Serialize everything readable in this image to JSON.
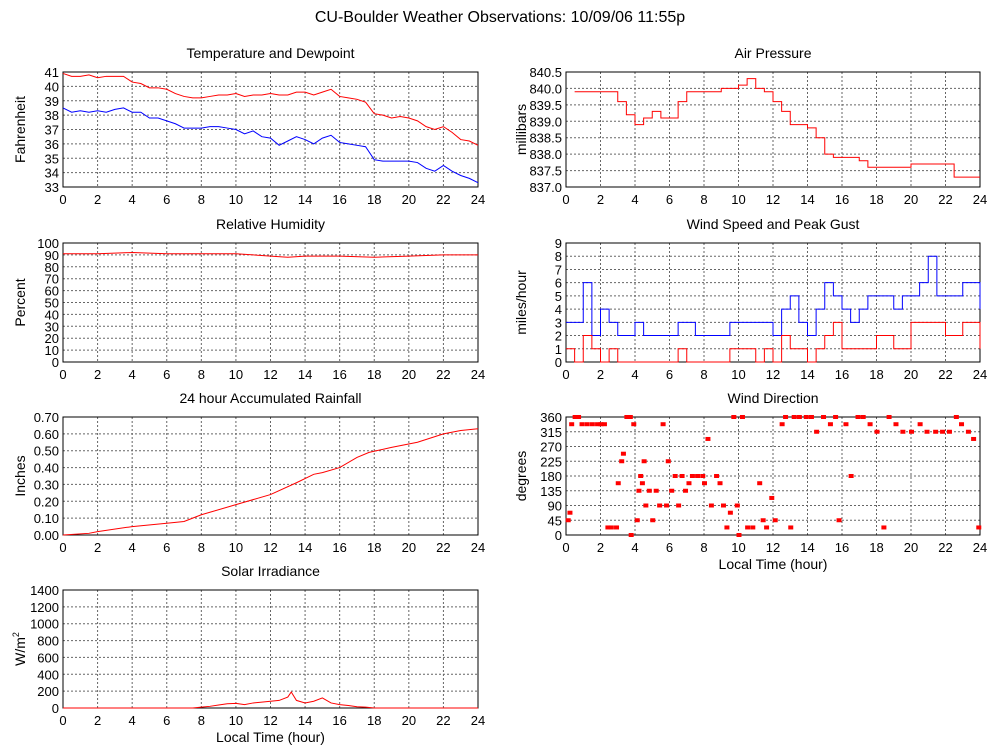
{
  "title": "CU-Boulder Weather Observations: 10/09/06 11:55p",
  "chart_data": [
    {
      "id": "temp",
      "type": "line",
      "title": "Temperature and Dewpoint",
      "ylabel": "Fahrenheit",
      "xlabel": "",
      "xlim": [
        0,
        24
      ],
      "ylim": [
        33,
        41
      ],
      "yticks": [
        "33",
        "34",
        "35",
        "36",
        "37",
        "38",
        "39",
        "40",
        "41"
      ],
      "xticks": [
        "0",
        "2",
        "4",
        "6",
        "8",
        "10",
        "12",
        "14",
        "16",
        "18",
        "20",
        "22",
        "24"
      ],
      "x": [
        0,
        0.5,
        1,
        1.5,
        2,
        2.5,
        3,
        3.5,
        4,
        4.5,
        5,
        5.5,
        6,
        6.5,
        7,
        7.5,
        8,
        8.5,
        9,
        9.5,
        10,
        10.5,
        11,
        11.5,
        12,
        12.5,
        13,
        13.5,
        14,
        14.5,
        15,
        15.5,
        16,
        16.5,
        17,
        17.5,
        18,
        18.5,
        19,
        19.5,
        20,
        20.5,
        21,
        21.5,
        22,
        22.5,
        23,
        23.5,
        24
      ],
      "series": [
        {
          "name": "Temperature",
          "color": "#ff0000",
          "values": [
            40.9,
            40.7,
            40.7,
            40.8,
            40.6,
            40.7,
            40.7,
            40.7,
            40.3,
            40.2,
            39.9,
            39.9,
            39.8,
            39.5,
            39.3,
            39.2,
            39.2,
            39.3,
            39.4,
            39.4,
            39.5,
            39.3,
            39.4,
            39.4,
            39.5,
            39.4,
            39.4,
            39.6,
            39.6,
            39.4,
            39.6,
            39.8,
            39.3,
            39.2,
            39.1,
            38.9,
            38.1,
            38.0,
            37.8,
            37.9,
            37.8,
            37.6,
            37.2,
            37.0,
            37.2,
            36.8,
            36.3,
            36.2,
            35.9
          ]
        },
        {
          "name": "Dewpoint",
          "color": "#0000ff",
          "values": [
            38.5,
            38.2,
            38.3,
            38.2,
            38.3,
            38.2,
            38.4,
            38.5,
            38.2,
            38.2,
            37.8,
            37.8,
            37.6,
            37.4,
            37.1,
            37.1,
            37.1,
            37.2,
            37.2,
            37.1,
            37.0,
            36.7,
            36.9,
            36.5,
            36.4,
            35.9,
            36.2,
            36.5,
            36.3,
            36.0,
            36.4,
            36.6,
            36.1,
            36.0,
            35.9,
            35.8,
            34.9,
            34.8,
            34.8,
            34.8,
            34.8,
            34.7,
            34.3,
            34.1,
            34.5,
            34.1,
            33.8,
            33.6,
            33.3
          ]
        }
      ]
    },
    {
      "id": "pres",
      "type": "line",
      "title": "Air Pressure",
      "ylabel": "millibars",
      "xlabel": "",
      "xlim": [
        0,
        24
      ],
      "ylim": [
        837,
        840.5
      ],
      "yticks": [
        "837.0",
        "837.5",
        "838.0",
        "838.5",
        "839.0",
        "839.5",
        "840.0",
        "840.5"
      ],
      "xticks": [
        "0",
        "2",
        "4",
        "6",
        "8",
        "10",
        "12",
        "14",
        "16",
        "18",
        "20",
        "22",
        "24"
      ],
      "x": [
        0.5,
        2,
        3,
        3.5,
        4,
        4.5,
        5,
        5.5,
        6,
        6.5,
        7,
        8,
        9,
        10,
        10.5,
        11,
        11.5,
        12,
        12.5,
        13,
        14,
        14.5,
        15,
        15.5,
        16,
        17,
        17.5,
        18,
        19,
        19.5,
        20,
        21,
        22,
        22.5,
        23,
        24
      ],
      "series": [
        {
          "name": "Pressure",
          "color": "#ff0000",
          "values": [
            839.9,
            839.9,
            839.6,
            839.2,
            838.9,
            839.1,
            839.3,
            839.1,
            839.1,
            839.6,
            839.9,
            839.9,
            840.0,
            840.1,
            840.3,
            840.0,
            839.9,
            839.6,
            839.3,
            838.9,
            838.8,
            838.5,
            838.0,
            837.9,
            837.9,
            837.8,
            837.6,
            837.6,
            837.6,
            837.6,
            837.7,
            837.7,
            837.7,
            837.3,
            837.3,
            837.3
          ]
        }
      ]
    },
    {
      "id": "rh",
      "type": "line",
      "title": "Relative Humidity",
      "ylabel": "Percent",
      "xlabel": "",
      "xlim": [
        0,
        24
      ],
      "ylim": [
        0,
        100
      ],
      "yticks": [
        "0",
        "10",
        "20",
        "30",
        "40",
        "50",
        "60",
        "70",
        "80",
        "90",
        "100"
      ],
      "xticks": [
        "0",
        "2",
        "4",
        "6",
        "8",
        "10",
        "12",
        "14",
        "16",
        "18",
        "20",
        "22",
        "24"
      ],
      "x": [
        0,
        2,
        4,
        6,
        8,
        10,
        11,
        12,
        13,
        14,
        16,
        18,
        20,
        22,
        24
      ],
      "series": [
        {
          "name": "Humidity",
          "color": "#ff0000",
          "values": [
            91,
            91,
            92,
            91,
            91,
            91,
            90,
            89,
            88,
            89,
            89,
            88,
            89,
            90,
            90
          ]
        }
      ]
    },
    {
      "id": "wind",
      "type": "line",
      "title": "Wind Speed and Peak Gust",
      "ylabel": "miles/hour",
      "xlabel": "",
      "xlim": [
        0,
        24
      ],
      "ylim": [
        0,
        9
      ],
      "yticks": [
        "0",
        "1",
        "2",
        "3",
        "4",
        "5",
        "6",
        "7",
        "8",
        "9"
      ],
      "xticks": [
        "0",
        "2",
        "4",
        "6",
        "8",
        "10",
        "12",
        "14",
        "16",
        "18",
        "20",
        "22",
        "24"
      ],
      "x": [
        0,
        0.5,
        1,
        1.5,
        2,
        2.5,
        3,
        3.5,
        4,
        4.5,
        5,
        5.5,
        6,
        6.5,
        7,
        7.5,
        8,
        8.5,
        9,
        9.5,
        10,
        10.5,
        11,
        11.5,
        12,
        12.5,
        13,
        13.5,
        14,
        14.5,
        15,
        15.5,
        16,
        16.5,
        17,
        17.5,
        18,
        18.5,
        19,
        19.5,
        20,
        20.5,
        21,
        21.5,
        22,
        22.5,
        23,
        23.5,
        24
      ],
      "series": [
        {
          "name": "Peak Gust",
          "color": "#0000ff",
          "values": [
            3,
            3,
            6,
            2,
            4,
            3,
            2,
            2,
            3,
            2,
            2,
            2,
            2,
            3,
            3,
            2,
            2,
            2,
            2,
            3,
            3,
            3,
            3,
            3,
            2,
            4,
            5,
            3,
            2,
            4,
            6,
            5,
            4,
            3,
            4,
            5,
            5,
            5,
            4,
            5,
            5,
            6,
            8,
            5,
            5,
            5,
            6,
            6,
            4
          ]
        },
        {
          "name": "Wind Speed",
          "color": "#ff0000",
          "values": [
            1,
            0,
            2,
            1,
            0,
            1,
            0,
            0,
            0,
            0,
            0,
            0,
            0,
            1,
            0,
            0,
            0,
            0,
            0,
            1,
            1,
            1,
            0,
            1,
            0,
            2,
            1,
            1,
            0,
            1,
            2,
            3,
            1,
            1,
            1,
            1,
            2,
            2,
            1,
            1,
            3,
            3,
            3,
            3,
            2,
            2,
            3,
            3,
            1
          ]
        }
      ]
    },
    {
      "id": "rain",
      "type": "line",
      "title": "24 hour Accumulated Rainfall",
      "ylabel": "Inches",
      "xlabel": "",
      "xlim": [
        0,
        24
      ],
      "ylim": [
        0,
        0.7
      ],
      "yticks": [
        "0.00",
        "0.10",
        "0.20",
        "0.30",
        "0.40",
        "0.50",
        "0.60",
        "0.70"
      ],
      "xticks": [
        "0",
        "2",
        "4",
        "6",
        "8",
        "10",
        "12",
        "14",
        "16",
        "18",
        "20",
        "22",
        "24"
      ],
      "x": [
        0,
        1.5,
        2,
        4,
        6,
        7,
        7.5,
        8,
        10,
        12,
        13.5,
        14.5,
        15,
        16,
        17,
        17.7,
        19,
        20.5,
        22,
        23,
        24
      ],
      "series": [
        {
          "name": "Rainfall",
          "color": "#ff0000",
          "values": [
            0,
            0.01,
            0.02,
            0.05,
            0.07,
            0.08,
            0.1,
            0.12,
            0.18,
            0.24,
            0.31,
            0.36,
            0.37,
            0.4,
            0.46,
            0.49,
            0.52,
            0.55,
            0.6,
            0.62,
            0.63
          ]
        }
      ]
    },
    {
      "id": "dir",
      "type": "scatter",
      "title": "Wind Direction",
      "ylabel": "degrees",
      "xlabel": "Local Time (hour)",
      "xlim": [
        0,
        24
      ],
      "ylim": [
        0,
        360
      ],
      "yticks": [
        "0",
        "45",
        "90",
        "135",
        "180",
        "225",
        "270",
        "315",
        "360"
      ],
      "xticks": [
        "0",
        "2",
        "4",
        "6",
        "8",
        "10",
        "12",
        "14",
        "16",
        "18",
        "20",
        "22",
        "24"
      ],
      "series": [
        {
          "name": "Direction",
          "color": "#ff0000",
          "points": [
            [
              0.1,
              45
            ],
            [
              0.2,
              68
            ],
            [
              0.3,
              338
            ],
            [
              0.5,
              360
            ],
            [
              0.7,
              360
            ],
            [
              0.9,
              338
            ],
            [
              1.2,
              338
            ],
            [
              1.5,
              338
            ],
            [
              1.8,
              338
            ],
            [
              2.0,
              338
            ],
            [
              2.2,
              338
            ],
            [
              2.4,
              23
            ],
            [
              2.6,
              23
            ],
            [
              2.9,
              23
            ],
            [
              3.0,
              158
            ],
            [
              3.2,
              225
            ],
            [
              3.3,
              248
            ],
            [
              3.5,
              360
            ],
            [
              3.7,
              360
            ],
            [
              3.75,
              0
            ],
            [
              3.9,
              338
            ],
            [
              4.1,
              45
            ],
            [
              4.2,
              135
            ],
            [
              4.3,
              180
            ],
            [
              4.4,
              158
            ],
            [
              4.5,
              225
            ],
            [
              4.6,
              90
            ],
            [
              4.8,
              135
            ],
            [
              5.0,
              45
            ],
            [
              5.2,
              135
            ],
            [
              5.4,
              90
            ],
            [
              5.6,
              338
            ],
            [
              5.8,
              90
            ],
            [
              5.9,
              225
            ],
            [
              6.1,
              135
            ],
            [
              6.3,
              180
            ],
            [
              6.5,
              90
            ],
            [
              6.7,
              180
            ],
            [
              6.9,
              135
            ],
            [
              7.1,
              158
            ],
            [
              7.3,
              180
            ],
            [
              7.6,
              180
            ],
            [
              7.9,
              180
            ],
            [
              8.0,
              158
            ],
            [
              8.2,
              293
            ],
            [
              8.4,
              90
            ],
            [
              8.7,
              180
            ],
            [
              8.9,
              158
            ],
            [
              9.1,
              90
            ],
            [
              9.3,
              23
            ],
            [
              9.5,
              68
            ],
            [
              9.7,
              360
            ],
            [
              9.9,
              90
            ],
            [
              10.0,
              0
            ],
            [
              10.2,
              360
            ],
            [
              10.5,
              23
            ],
            [
              10.8,
              23
            ],
            [
              11.2,
              158
            ],
            [
              11.4,
              45
            ],
            [
              11.6,
              23
            ],
            [
              11.9,
              113
            ],
            [
              12.1,
              45
            ],
            [
              12.5,
              338
            ],
            [
              12.7,
              360
            ],
            [
              13.0,
              23
            ],
            [
              13.2,
              360
            ],
            [
              13.5,
              360
            ],
            [
              13.9,
              360
            ],
            [
              14.2,
              360
            ],
            [
              14.5,
              315
            ],
            [
              14.9,
              360
            ],
            [
              15.3,
              338
            ],
            [
              15.6,
              360
            ],
            [
              15.8,
              45
            ],
            [
              16.2,
              338
            ],
            [
              16.5,
              180
            ],
            [
              16.9,
              360
            ],
            [
              17.2,
              360
            ],
            [
              17.6,
              338
            ],
            [
              18.0,
              315
            ],
            [
              18.4,
              23
            ],
            [
              18.7,
              360
            ],
            [
              19.1,
              338
            ],
            [
              19.5,
              315
            ],
            [
              20.0,
              315
            ],
            [
              20.5,
              338
            ],
            [
              20.9,
              315
            ],
            [
              21.4,
              315
            ],
            [
              21.8,
              315
            ],
            [
              22.2,
              315
            ],
            [
              22.6,
              360
            ],
            [
              22.9,
              338
            ],
            [
              23.3,
              315
            ],
            [
              23.6,
              293
            ],
            [
              23.9,
              23
            ]
          ]
        }
      ]
    },
    {
      "id": "solar",
      "type": "line",
      "title": "Solar Irradiance",
      "ylabel": "W/m",
      "ylabel_sup": "2",
      "xlabel": "Local Time (hour)",
      "xlim": [
        0,
        24
      ],
      "ylim": [
        0,
        1400
      ],
      "yticks": [
        "0",
        "200",
        "400",
        "600",
        "800",
        "1000",
        "1200",
        "1400"
      ],
      "xticks": [
        "0",
        "2",
        "4",
        "6",
        "8",
        "10",
        "12",
        "14",
        "16",
        "18",
        "20",
        "22",
        "24"
      ],
      "x": [
        0,
        7.5,
        8,
        8.5,
        9,
        9.5,
        10,
        10.5,
        11,
        11.5,
        12,
        12.5,
        13,
        13.2,
        13.5,
        14,
        14.5,
        15,
        15.5,
        16,
        16.5,
        17,
        17.5,
        18,
        24
      ],
      "series": [
        {
          "name": "Solar",
          "color": "#ff0000",
          "values": [
            0,
            0,
            10,
            20,
            35,
            50,
            55,
            40,
            60,
            70,
            80,
            90,
            130,
            190,
            90,
            60,
            80,
            120,
            60,
            40,
            30,
            15,
            10,
            0,
            0
          ]
        }
      ]
    }
  ]
}
